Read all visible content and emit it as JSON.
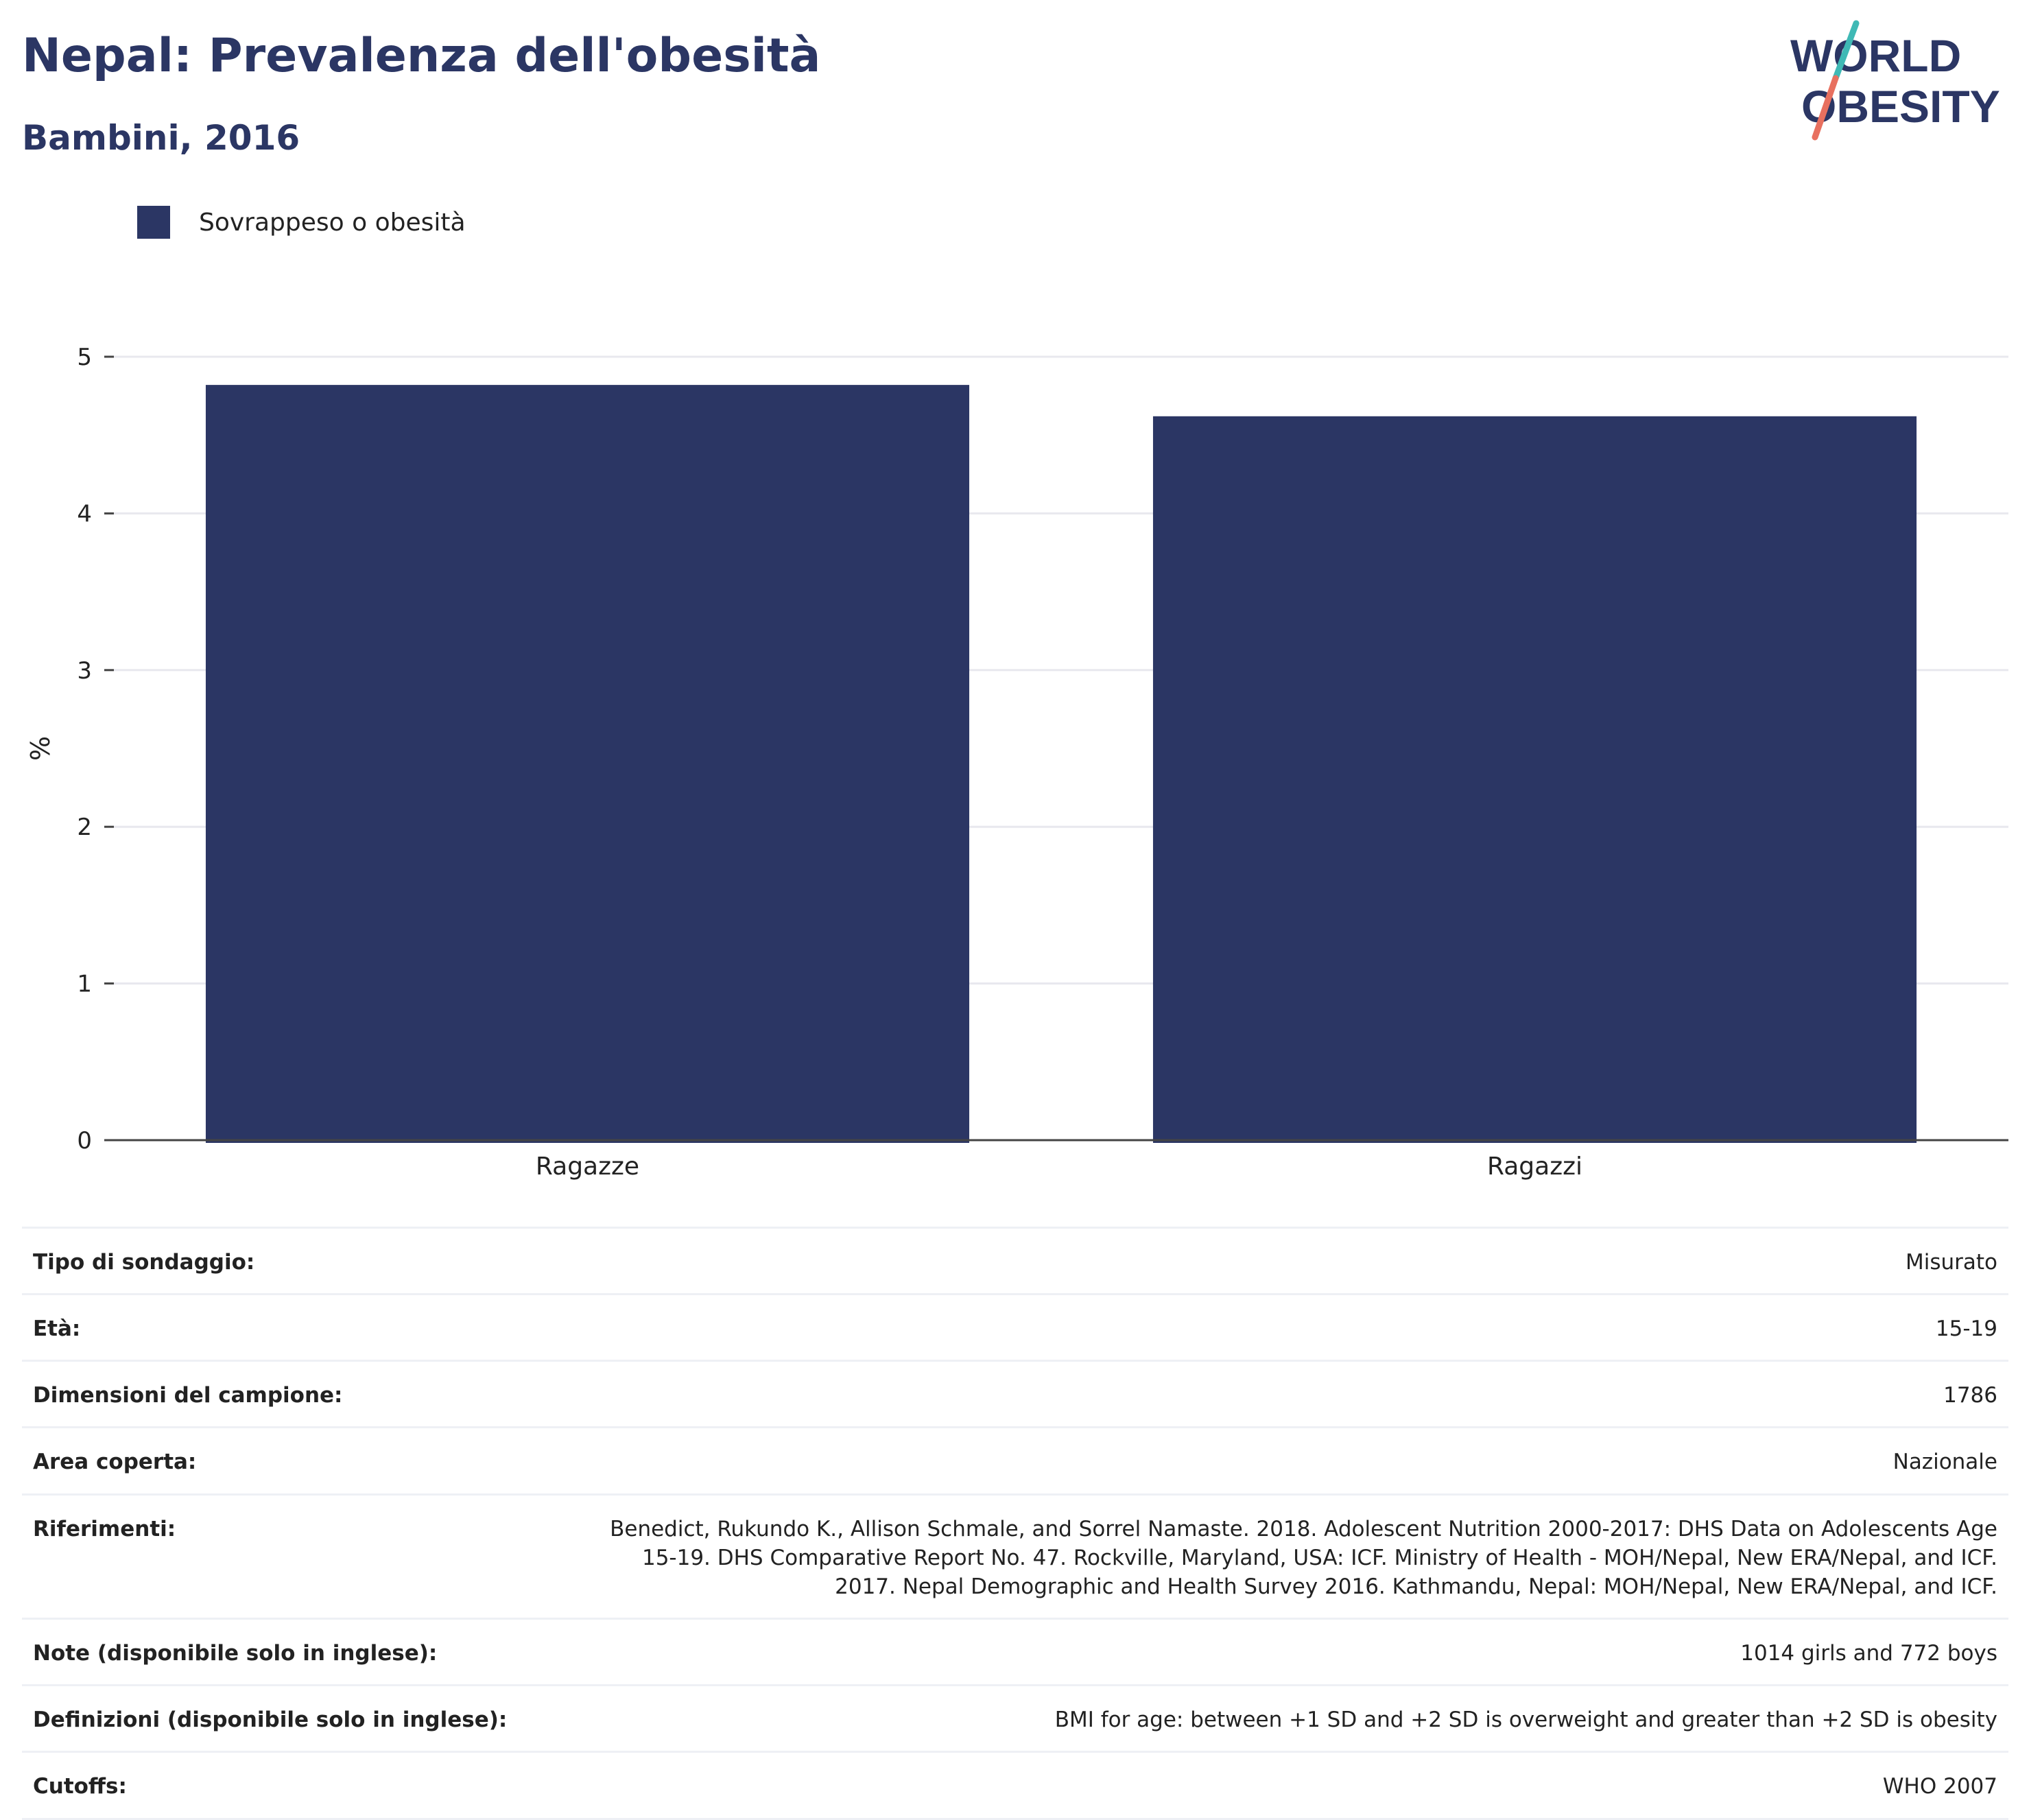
{
  "header": {
    "title": "Nepal: Prevalenza dell'obesità",
    "subtitle": "Bambini, 2016"
  },
  "logo": {
    "line1": "WORLD",
    "line2": "OBESITY",
    "colors": {
      "navy": "#2b3664",
      "teal": "#3fb9b5",
      "coral": "#e8705f"
    }
  },
  "legend": {
    "label": "Sovrappeso o obesità",
    "color": "#2b3664"
  },
  "chart_data": {
    "type": "bar",
    "categories": [
      "Ragazze",
      "Ragazzi"
    ],
    "series": [
      {
        "name": "Sovrappeso o obesità",
        "values": [
          4.82,
          4.62
        ],
        "color": "#2b3664"
      }
    ],
    "ylabel": "%",
    "ylim": [
      0,
      5
    ],
    "yticks": [
      0,
      1,
      2,
      3,
      4,
      5
    ],
    "grid": true
  },
  "info": [
    {
      "key": "Tipo di sondaggio:",
      "value": "Misurato"
    },
    {
      "key": "Età:",
      "value": "15-19"
    },
    {
      "key": "Dimensioni del campione:",
      "value": "1786"
    },
    {
      "key": "Area coperta:",
      "value": "Nazionale"
    },
    {
      "key": "Riferimenti:",
      "value": "Benedict, Rukundo K., Allison Schmale, and Sorrel Namaste. 2018. Adolescent Nutrition 2000-2017: DHS Data on Adolescents Age 15-19. DHS Comparative Report No. 47. Rockville, Maryland, USA: ICF. Ministry of Health - MOH/Nepal, New ERA/Nepal, and ICF. 2017. Nepal Demographic and Health Survey 2016. Kathmandu, Nepal: MOH/Nepal, New ERA/Nepal, and ICF."
    },
    {
      "key": "Note (disponibile solo in inglese):",
      "value": "1014 girls and 772 boys"
    },
    {
      "key": "Definizioni (disponibile solo in inglese):",
      "value": "BMI for age: between +1 SD and +2 SD is overweight and greater than +2 SD is obesity"
    },
    {
      "key": "Cutoffs:",
      "value": "WHO 2007"
    }
  ]
}
